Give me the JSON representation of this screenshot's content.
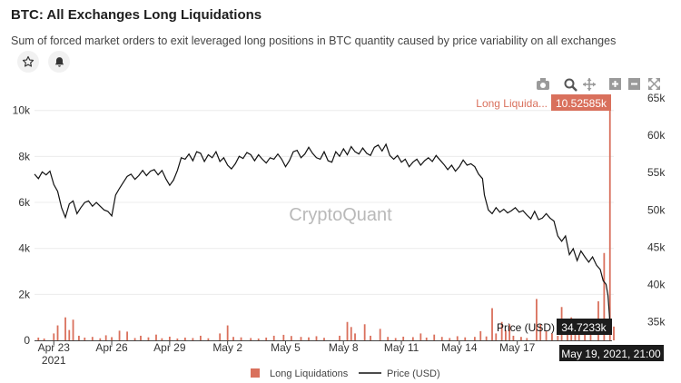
{
  "header": {
    "title": "BTC: All Exchanges Long Liquidations",
    "subtitle": "Sum of forced market orders to exit leveraged long positions in BTC quantity caused by price variability on all exchanges"
  },
  "watermark": "CryptoQuant",
  "toolbar_icons": [
    "camera-icon",
    "zoom-icon",
    "pan-icon",
    "zoom-in-icon",
    "zoom-out-icon",
    "reset-axes-icon"
  ],
  "colors": {
    "bar": "#d9705c",
    "price": "#111111",
    "tooltip_bar": "#d9705c",
    "tooltip_price": "#1c1c1c"
  },
  "tooltips": {
    "liq_name": "Long Liquida...",
    "liq_value": "10.52585k",
    "price_name": "Price (USD)",
    "price_value": "34.7233k",
    "date": "May 19, 2021, 21:00"
  },
  "chart_data": {
    "type": "bar",
    "x_ticks": [
      "Apr 23",
      "Apr 26",
      "Apr 29",
      "May 2",
      "May 5",
      "May 8",
      "May 11",
      "May 14",
      "May 17"
    ],
    "x_tick_year": "2021",
    "y_left_ticks": [
      "0",
      "2k",
      "4k",
      "6k",
      "8k",
      "10k"
    ],
    "y_left_range": [
      0,
      10700
    ],
    "y_right_ticks": [
      "35k",
      "40k",
      "45k",
      "50k",
      "55k",
      "60k",
      "65k"
    ],
    "y_right_range": [
      32500,
      65500
    ],
    "x_range_days": "Apr 22 – May 20, 2021",
    "series": [
      {
        "name": "Long Liquidations",
        "kind": "bar",
        "points": [
          [
            0.2,
            120
          ],
          [
            0.5,
            80
          ],
          [
            1.0,
            300
          ],
          [
            1.2,
            650
          ],
          [
            1.6,
            1000
          ],
          [
            1.8,
            450
          ],
          [
            2.0,
            900
          ],
          [
            2.3,
            200
          ],
          [
            2.6,
            120
          ],
          [
            3.0,
            150
          ],
          [
            3.4,
            90
          ],
          [
            3.7,
            220
          ],
          [
            4.0,
            140
          ],
          [
            4.4,
            420
          ],
          [
            4.8,
            380
          ],
          [
            5.2,
            100
          ],
          [
            5.5,
            200
          ],
          [
            5.9,
            130
          ],
          [
            6.3,
            250
          ],
          [
            6.6,
            90
          ],
          [
            7.0,
            160
          ],
          [
            7.4,
            80
          ],
          [
            7.8,
            120
          ],
          [
            8.2,
            100
          ],
          [
            8.6,
            200
          ],
          [
            9.0,
            90
          ],
          [
            9.6,
            300
          ],
          [
            10.0,
            650
          ],
          [
            10.3,
            150
          ],
          [
            10.7,
            130
          ],
          [
            11.2,
            100
          ],
          [
            11.6,
            80
          ],
          [
            12.0,
            120
          ],
          [
            12.4,
            200
          ],
          [
            12.9,
            240
          ],
          [
            13.3,
            190
          ],
          [
            13.8,
            150
          ],
          [
            14.2,
            130
          ],
          [
            14.6,
            180
          ],
          [
            15.0,
            110
          ],
          [
            15.8,
            200
          ],
          [
            16.2,
            800
          ],
          [
            16.4,
            580
          ],
          [
            16.6,
            300
          ],
          [
            17.1,
            700
          ],
          [
            17.4,
            200
          ],
          [
            17.9,
            500
          ],
          [
            18.3,
            150
          ],
          [
            18.7,
            100
          ],
          [
            19.1,
            160
          ],
          [
            19.6,
            140
          ],
          [
            20.0,
            300
          ],
          [
            20.3,
            120
          ],
          [
            20.7,
            250
          ],
          [
            21.1,
            150
          ],
          [
            21.5,
            100
          ],
          [
            21.9,
            180
          ],
          [
            22.3,
            130
          ],
          [
            22.8,
            150
          ],
          [
            23.1,
            400
          ],
          [
            23.4,
            170
          ],
          [
            23.7,
            1400
          ],
          [
            23.9,
            300
          ],
          [
            24.2,
            800
          ],
          [
            24.4,
            450
          ],
          [
            24.6,
            700
          ],
          [
            24.8,
            200
          ],
          [
            25.2,
            150
          ],
          [
            25.5,
            100
          ],
          [
            26.0,
            1800
          ],
          [
            26.2,
            700
          ],
          [
            26.5,
            400
          ],
          [
            26.8,
            300
          ],
          [
            27.1,
            200
          ],
          [
            27.3,
            1450
          ],
          [
            27.6,
            500
          ],
          [
            27.8,
            1000
          ],
          [
            28.0,
            250
          ],
          [
            28.2,
            900
          ],
          [
            28.5,
            400
          ],
          [
            28.8,
            600
          ],
          [
            29.2,
            1700
          ],
          [
            29.5,
            3800
          ],
          [
            29.8,
            10526
          ],
          [
            30.0,
            600
          ]
        ]
      },
      {
        "name": "Price (USD)",
        "kind": "line",
        "points": [
          [
            0,
            54800
          ],
          [
            0.2,
            54200
          ],
          [
            0.4,
            55100
          ],
          [
            0.6,
            54700
          ],
          [
            0.8,
            55200
          ],
          [
            1.0,
            53400
          ],
          [
            1.2,
            52500
          ],
          [
            1.4,
            50300
          ],
          [
            1.6,
            49000
          ],
          [
            1.8,
            50800
          ],
          [
            2.0,
            51200
          ],
          [
            2.2,
            49500
          ],
          [
            2.4,
            50300
          ],
          [
            2.6,
            51000
          ],
          [
            2.8,
            51200
          ],
          [
            3.0,
            50500
          ],
          [
            3.2,
            51000
          ],
          [
            3.4,
            50500
          ],
          [
            3.6,
            50000
          ],
          [
            3.8,
            49800
          ],
          [
            4.0,
            49200
          ],
          [
            4.2,
            52000
          ],
          [
            4.4,
            52900
          ],
          [
            4.6,
            53700
          ],
          [
            4.8,
            54500
          ],
          [
            5.0,
            54800
          ],
          [
            5.2,
            54100
          ],
          [
            5.4,
            54600
          ],
          [
            5.6,
            55300
          ],
          [
            5.8,
            54600
          ],
          [
            6.0,
            55200
          ],
          [
            6.2,
            55400
          ],
          [
            6.4,
            54700
          ],
          [
            6.6,
            55300
          ],
          [
            6.8,
            54200
          ],
          [
            7.0,
            53300
          ],
          [
            7.2,
            54000
          ],
          [
            7.4,
            55300
          ],
          [
            7.6,
            57000
          ],
          [
            7.8,
            56800
          ],
          [
            8.0,
            57500
          ],
          [
            8.2,
            56600
          ],
          [
            8.4,
            57800
          ],
          [
            8.6,
            57600
          ],
          [
            8.8,
            56500
          ],
          [
            9.0,
            57400
          ],
          [
            9.2,
            57000
          ],
          [
            9.4,
            57800
          ],
          [
            9.6,
            56500
          ],
          [
            9.8,
            57000
          ],
          [
            10.0,
            56000
          ],
          [
            10.2,
            55500
          ],
          [
            10.4,
            56200
          ],
          [
            10.6,
            57200
          ],
          [
            10.8,
            56900
          ],
          [
            11.0,
            57700
          ],
          [
            11.2,
            57400
          ],
          [
            11.4,
            56600
          ],
          [
            11.6,
            57400
          ],
          [
            11.8,
            56800
          ],
          [
            12.0,
            56300
          ],
          [
            12.2,
            57000
          ],
          [
            12.4,
            56800
          ],
          [
            12.6,
            57500
          ],
          [
            12.8,
            56800
          ],
          [
            13.0,
            55800
          ],
          [
            13.2,
            56600
          ],
          [
            13.4,
            57800
          ],
          [
            13.6,
            58000
          ],
          [
            13.8,
            57000
          ],
          [
            14.0,
            57500
          ],
          [
            14.2,
            58400
          ],
          [
            14.4,
            57600
          ],
          [
            14.6,
            57000
          ],
          [
            14.8,
            56800
          ],
          [
            15.0,
            57800
          ],
          [
            15.2,
            56600
          ],
          [
            15.4,
            56400
          ],
          [
            15.6,
            57800
          ],
          [
            15.8,
            57200
          ],
          [
            16.0,
            58200
          ],
          [
            16.2,
            57400
          ],
          [
            16.4,
            58500
          ],
          [
            16.6,
            57800
          ],
          [
            16.8,
            57500
          ],
          [
            17.0,
            58300
          ],
          [
            17.2,
            57600
          ],
          [
            17.4,
            57300
          ],
          [
            17.6,
            58400
          ],
          [
            17.8,
            58700
          ],
          [
            18.0,
            57900
          ],
          [
            18.2,
            58800
          ],
          [
            18.4,
            57300
          ],
          [
            18.6,
            56800
          ],
          [
            18.8,
            57300
          ],
          [
            19.0,
            56400
          ],
          [
            19.2,
            56800
          ],
          [
            19.4,
            55800
          ],
          [
            19.6,
            56400
          ],
          [
            19.8,
            56800
          ],
          [
            20.0,
            56000
          ],
          [
            20.2,
            56600
          ],
          [
            20.4,
            57000
          ],
          [
            20.6,
            56500
          ],
          [
            20.8,
            57300
          ],
          [
            21.0,
            56700
          ],
          [
            21.2,
            56100
          ],
          [
            21.4,
            55400
          ],
          [
            21.6,
            56000
          ],
          [
            21.8,
            55200
          ],
          [
            22.0,
            55800
          ],
          [
            22.2,
            56700
          ],
          [
            22.4,
            56000
          ],
          [
            22.6,
            56200
          ],
          [
            22.8,
            55800
          ],
          [
            23.0,
            54800
          ],
          [
            23.2,
            54200
          ],
          [
            23.3,
            52000
          ],
          [
            23.5,
            50000
          ],
          [
            23.7,
            49500
          ],
          [
            23.9,
            50300
          ],
          [
            24.1,
            49700
          ],
          [
            24.3,
            50100
          ],
          [
            24.5,
            49600
          ],
          [
            24.7,
            49900
          ],
          [
            24.9,
            50300
          ],
          [
            25.1,
            49700
          ],
          [
            25.3,
            49900
          ],
          [
            25.5,
            49300
          ],
          [
            25.7,
            48800
          ],
          [
            25.9,
            49800
          ],
          [
            26.1,
            48700
          ],
          [
            26.3,
            48900
          ],
          [
            26.5,
            49500
          ],
          [
            26.7,
            48900
          ],
          [
            26.9,
            48500
          ],
          [
            27.1,
            46500
          ],
          [
            27.3,
            45800
          ],
          [
            27.5,
            46500
          ],
          [
            27.7,
            44000
          ],
          [
            27.9,
            44800
          ],
          [
            28.1,
            43200
          ],
          [
            28.3,
            44500
          ],
          [
            28.5,
            43700
          ],
          [
            28.7,
            43000
          ],
          [
            28.9,
            43700
          ],
          [
            29.1,
            42600
          ],
          [
            29.3,
            42000
          ],
          [
            29.45,
            40500
          ],
          [
            29.6,
            40000
          ],
          [
            29.7,
            38500
          ],
          [
            29.8,
            35000
          ],
          [
            29.85,
            34723
          ]
        ]
      }
    ]
  }
}
